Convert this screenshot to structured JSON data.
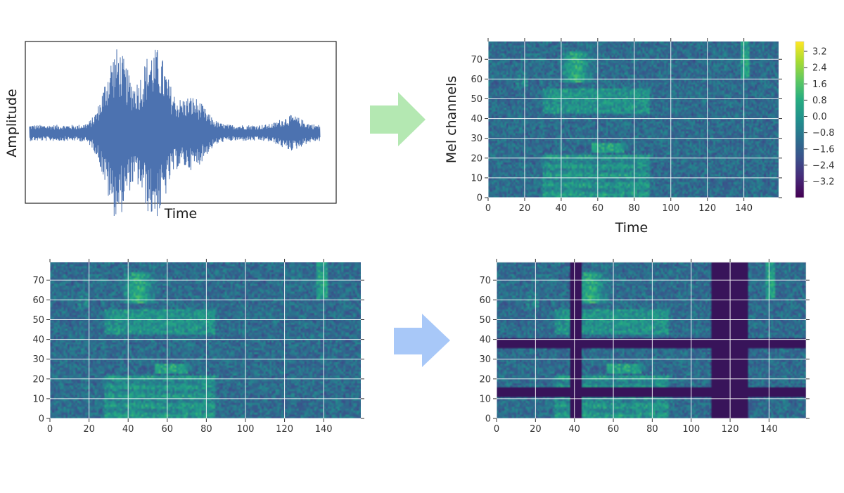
{
  "chart_data": [
    {
      "panel": "waveform",
      "type": "line",
      "xlabel": "Time",
      "ylabel": "Amplitude"
    },
    {
      "panel": "mel-spectrogram",
      "type": "heatmap",
      "xlabel": "Time",
      "ylabel": "Mel channels",
      "xticks": [
        0,
        20,
        40,
        60,
        80,
        100,
        120,
        140
      ],
      "yticks": [
        0,
        10,
        20,
        30,
        40,
        50,
        60,
        70
      ],
      "xlim": [
        0,
        159
      ],
      "ylim": [
        0,
        79
      ],
      "colorbar_ticks": [
        3.2,
        2.4,
        1.6,
        0.8,
        0.0,
        -0.8,
        -1.6,
        -2.4,
        -3.2
      ],
      "colorbar_tick_labels": [
        "3.2",
        "2.4",
        "1.6",
        "0.8",
        "0.0",
        "−0.8",
        "−1.6",
        "−2.4",
        "−3.2"
      ],
      "colormap": "viridis"
    },
    {
      "panel": "time-warped-spectrogram",
      "type": "heatmap",
      "xticks": [
        0,
        20,
        40,
        60,
        80,
        100,
        120,
        140
      ],
      "yticks": [
        0,
        10,
        20,
        30,
        40,
        50,
        60,
        70
      ],
      "xlim": [
        0,
        159
      ],
      "ylim": [
        0,
        79
      ]
    },
    {
      "panel": "masked-spectrogram",
      "type": "heatmap",
      "xticks": [
        0,
        20,
        40,
        60,
        80,
        100,
        120,
        140
      ],
      "yticks": [
        0,
        10,
        20,
        30,
        40,
        50,
        60,
        70
      ],
      "xlim": [
        0,
        159
      ],
      "ylim": [
        0,
        79
      ],
      "time_masks": [
        [
          38,
          44
        ],
        [
          111,
          130
        ]
      ],
      "frequency_masks": [
        [
          11,
          16
        ],
        [
          36,
          41
        ]
      ]
    }
  ],
  "arrows": [
    {
      "name": "arrow-to-spectrogram",
      "color": "#b4e8b2"
    },
    {
      "name": "arrow-to-masked",
      "color": "#a8c8f8"
    }
  ]
}
